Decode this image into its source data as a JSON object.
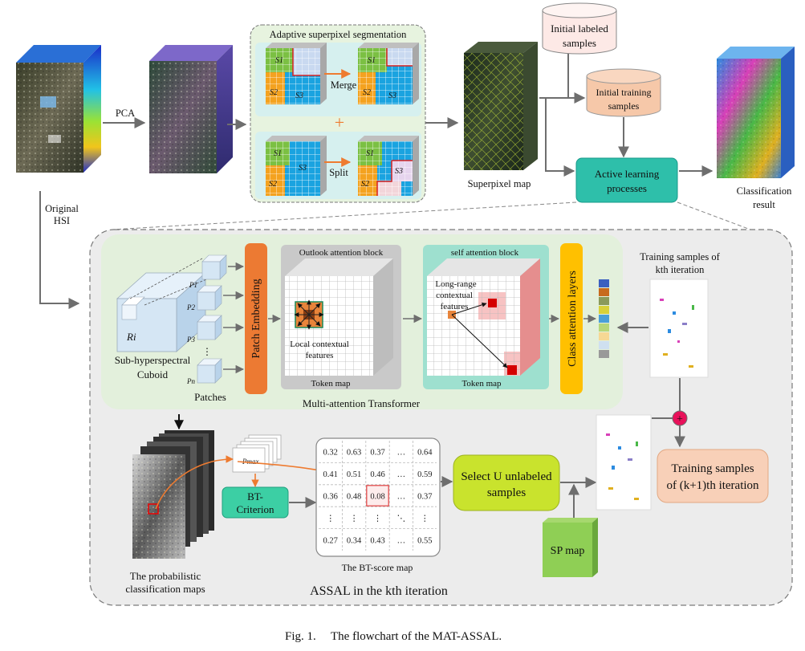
{
  "colors": {
    "outer_panel": "#ececec",
    "transformer_panel": "#e3f0dc",
    "superpixel_panel": "#e7f3df",
    "patch_embedding": "#ec7a33",
    "class_attention": "#ffc000",
    "active_learning": "#2ebfaa",
    "initial_labeled": "#fde9e6",
    "initial_training": "#f6c8a9",
    "select_unlabeled": "#c9e32d",
    "bt_criterion": "#3ccfa4",
    "sp_map": "#8fcf55",
    "training_next": "#f8d0b8",
    "plus_circle": "#e8115a",
    "grid_orange": "#f4a21f",
    "grid_blue": "#1aa3e0",
    "grid_green": "#7bc043",
    "grid_red": "#d62222"
  },
  "top": {
    "original_hsi": [
      "Original",
      "HSI"
    ],
    "pca": "PCA",
    "superpixel_title": "Adaptive superpixel segmentation",
    "merge": "Merge",
    "split": "Split",
    "plus": "+",
    "superpixel_map": "Superpixel map",
    "initial_labeled": [
      "Initial labeled",
      "samples"
    ],
    "initial_training": [
      "Initial training",
      "samples"
    ],
    "active_learning": [
      "Active learning",
      "processes"
    ],
    "classification_result": [
      "Classification",
      "result"
    ],
    "segment_labels": [
      "S1",
      "S2",
      "S3"
    ]
  },
  "transformer": {
    "title": "Multi-attention Transformer",
    "cuboid_label": "Ri",
    "cuboid_caption": [
      "Sub-hyperspectral",
      "Cuboid"
    ],
    "patches_caption": "Patches",
    "patch_labels": [
      "P1",
      "P2",
      "P3",
      "Pn"
    ],
    "patch_dots": "⋮",
    "patch_embedding": "Patch Embedding",
    "outlook_title": "Outlook attention block",
    "outlook_note": [
      "Local contextual",
      "features"
    ],
    "outlook_token": "Token map",
    "self_title": "self attention block",
    "self_note": [
      "Long-range",
      "contextual",
      "features"
    ],
    "self_token": "Token map",
    "class_attention": "Class attention layers",
    "training_kth": [
      "Training samples of",
      "kth iteration"
    ],
    "legend_colors": [
      "#3b5fc0",
      "#c76a1e",
      "#8a9a5b",
      "#d8d13a",
      "#4a9fd8",
      "#b7d67a",
      "#f6d894",
      "#cfe0f0",
      "#999999"
    ]
  },
  "assal": {
    "title": "ASSAL in the kth iteration",
    "prob_maps_caption": [
      "The probabilistic",
      "classification maps"
    ],
    "p_max": "Pmax",
    "bt_criterion": [
      "BT-",
      "Criterion"
    ],
    "bt_scores": [
      [
        "0.32",
        "0.63",
        "0.37",
        "…",
        "0.64"
      ],
      [
        "0.41",
        "0.51",
        "0.46",
        "…",
        "0.59"
      ],
      [
        "0.36",
        "0.48",
        "0.08",
        "…",
        "0.37"
      ],
      [
        "⋮",
        "⋮",
        "⋮",
        "⋱",
        "⋮"
      ],
      [
        "0.27",
        "0.34",
        "0.43",
        "…",
        "0.55"
      ]
    ],
    "bt_caption": "The BT-score map",
    "select": [
      "Select U unlabeled",
      "samples"
    ],
    "sp_map": "SP map",
    "training_next": [
      "Training samples",
      "of (k+1)th iteration"
    ],
    "plus": "+"
  },
  "caption": {
    "fig": "Fig. 1.",
    "text": "The flowchart of the MAT-ASSAL."
  }
}
